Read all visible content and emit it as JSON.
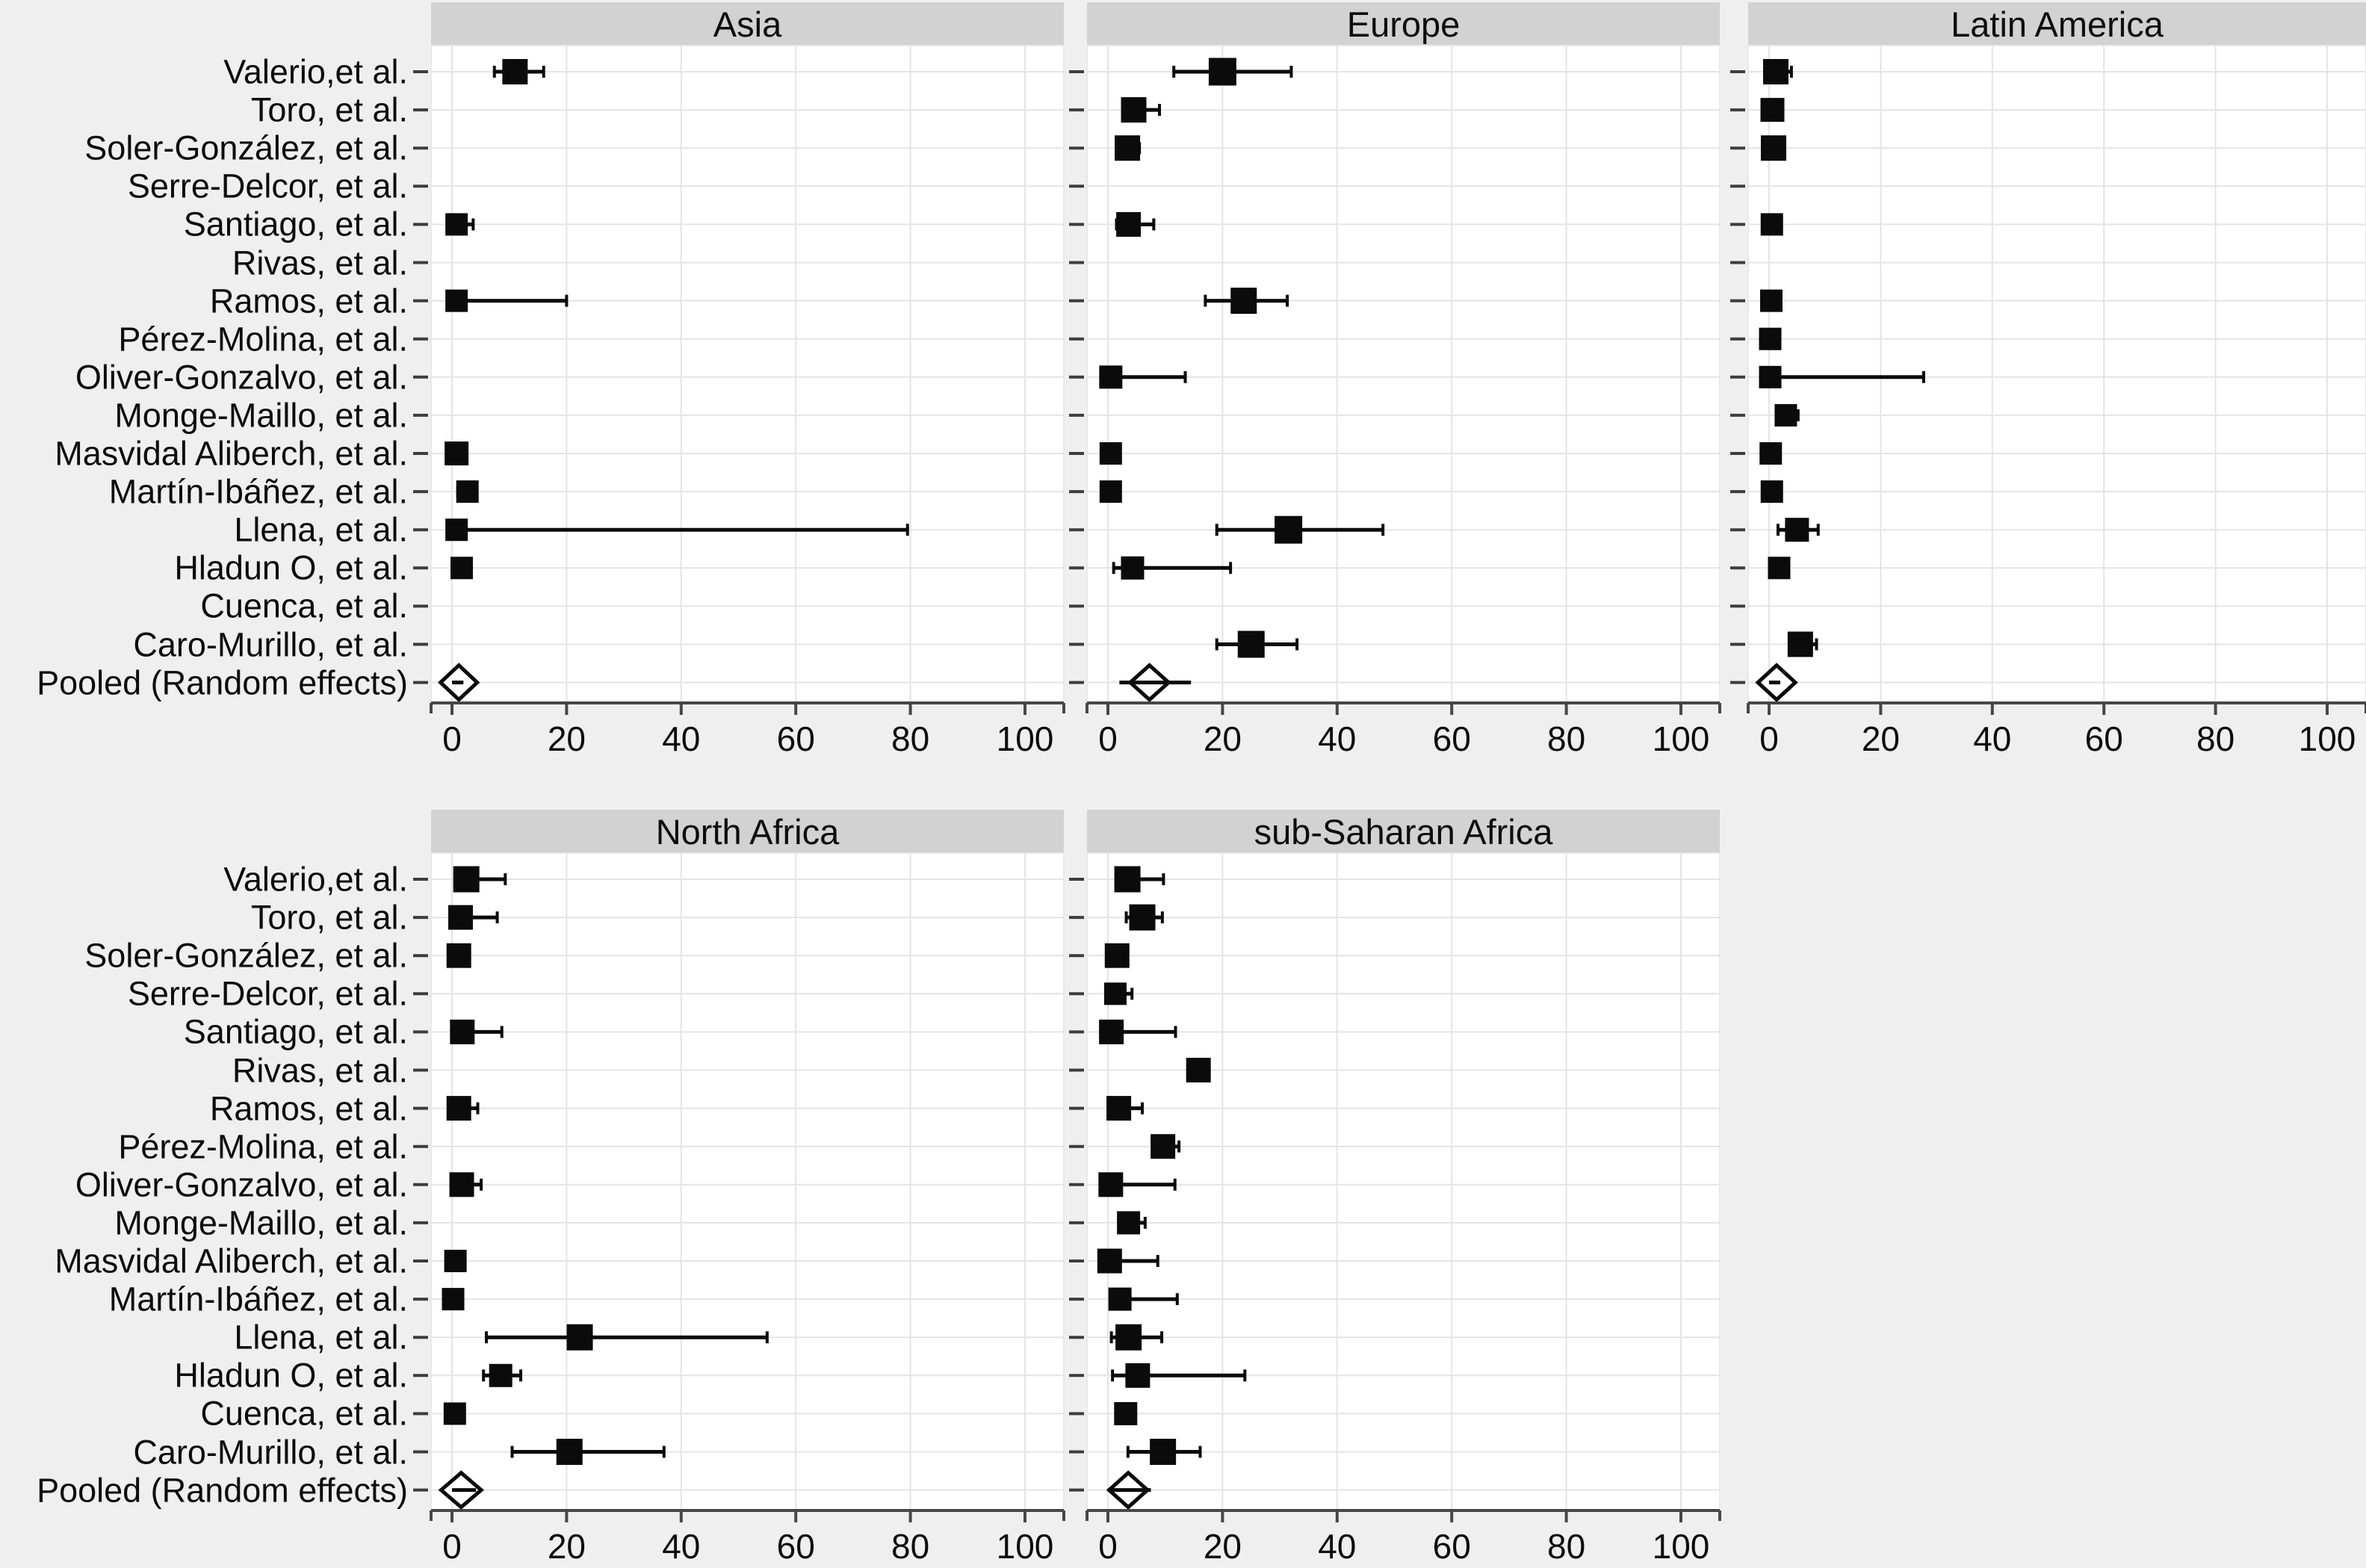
{
  "figure": {
    "background": "#efefef",
    "panel_header_bg": "#d2d2d2",
    "plot_bg": "#ffffff",
    "grid_color": "#e4e4e4",
    "axis_color": "#474747",
    "marker_color": "#0b0b0b",
    "text_color": "#0c0c0c"
  },
  "studies": [
    "Valerio,et al.",
    "Toro, et al.",
    "Soler-González, et al.",
    "Serre-Delcor, et al.",
    "Santiago, et al.",
    "Rivas, et al.",
    "Ramos, et al.",
    "Pérez-Molina, et al.",
    "Oliver-Gonzalvo, et al.",
    "Monge-Maillo, et al.",
    "Masvidal Aliberch, et al.",
    "Martín-Ibáñez, et al.",
    "Llena, et al.",
    "Hladun O, et al.",
    "Cuenca, et al.",
    "Caro-Murillo, et al."
  ],
  "pooled_label": "Pooled (Random effects)",
  "chart_data": [
    {
      "type": "forest",
      "title": "Asia",
      "grid_row": 0,
      "grid_col": 0,
      "x_ticks": [
        0,
        20,
        40,
        60,
        80,
        100
      ],
      "x_range": [
        -4,
        107
      ],
      "estimates": [
        {
          "e": 11,
          "l": 7.4,
          "h": 16,
          "s": 34
        },
        null,
        null,
        null,
        {
          "e": 0.8,
          "l": 0,
          "h": 3.7,
          "s": 30
        },
        null,
        {
          "e": 0.8,
          "l": 0,
          "h": 20,
          "s": 30
        },
        null,
        null,
        null,
        {
          "e": 0.8,
          "l": 0,
          "h": 2,
          "s": 32
        },
        {
          "e": 2.7,
          "l": 1,
          "h": 4,
          "s": 30
        },
        {
          "e": 0.8,
          "l": 0,
          "h": 79.5,
          "s": 30
        },
        {
          "e": 1.7,
          "l": 0,
          "h": 3,
          "s": 30
        },
        null,
        null
      ],
      "pooled": {
        "e": 1,
        "l": -2,
        "h": 4.4,
        "line": [
          0,
          2
        ]
      }
    },
    {
      "type": "forest",
      "title": "Europe",
      "grid_row": 0,
      "grid_col": 1,
      "x_ticks": [
        0,
        20,
        40,
        60,
        80,
        100
      ],
      "x_range": [
        -4,
        107
      ],
      "estimates": [
        {
          "e": 20,
          "l": 11.5,
          "h": 32,
          "s": 37
        },
        {
          "e": 4.5,
          "l": 3,
          "h": 9,
          "s": 34
        },
        {
          "e": 3.4,
          "l": 2,
          "h": 5.5,
          "s": 34
        },
        null,
        {
          "e": 3.6,
          "l": 1.5,
          "h": 8,
          "s": 33
        },
        null,
        {
          "e": 23.7,
          "l": 17,
          "h": 31.3,
          "s": 35
        },
        null,
        {
          "e": 0.5,
          "l": 0,
          "h": 13.5,
          "s": 31
        },
        null,
        {
          "e": 0.5,
          "l": 0,
          "h": 2,
          "s": 30
        },
        {
          "e": 0.5,
          "l": 0,
          "h": 2,
          "s": 30
        },
        {
          "e": 31.5,
          "l": 19,
          "h": 48,
          "s": 37
        },
        {
          "e": 4.3,
          "l": 1,
          "h": 21.4,
          "s": 31
        },
        null,
        {
          "e": 25,
          "l": 19,
          "h": 33,
          "s": 36
        }
      ],
      "pooled": {
        "e": 7.2,
        "l": 3.9,
        "h": 10.6,
        "line": [
          2,
          14.5
        ]
      }
    },
    {
      "type": "forest",
      "title": "Latin America",
      "grid_row": 0,
      "grid_col": 2,
      "x_ticks": [
        0,
        20,
        40,
        60,
        80,
        100
      ],
      "x_range": [
        -4,
        107
      ],
      "estimates": [
        {
          "e": 1.2,
          "l": 0,
          "h": 4,
          "s": 34
        },
        {
          "e": 0.6,
          "l": 0,
          "h": 2,
          "s": 32
        },
        {
          "e": 0.8,
          "l": 0,
          "h": 2.5,
          "s": 34
        },
        null,
        {
          "e": 0.5,
          "l": 0,
          "h": 2,
          "s": 30
        },
        null,
        {
          "e": 0.4,
          "l": 0,
          "h": 1.5,
          "s": 30
        },
        {
          "e": 0.2,
          "l": 0,
          "h": 1.2,
          "s": 30
        },
        {
          "e": 0.2,
          "l": 0,
          "h": 27.7,
          "s": 30
        },
        {
          "e": 3,
          "l": 1.5,
          "h": 5.2,
          "s": 30
        },
        {
          "e": 0.3,
          "l": 0,
          "h": 1.5,
          "s": 30
        },
        {
          "e": 0.5,
          "l": 0,
          "h": 1.5,
          "s": 30
        },
        {
          "e": 5,
          "l": 1.6,
          "h": 8.8,
          "s": 32
        },
        {
          "e": 1.8,
          "l": 0.5,
          "h": 3,
          "s": 30
        },
        null,
        {
          "e": 5.6,
          "l": 4,
          "h": 8.5,
          "s": 34
        }
      ],
      "pooled": {
        "e": 1.3,
        "l": -2,
        "h": 4.7,
        "line": [
          0,
          2
        ]
      }
    },
    {
      "type": "forest",
      "title": "North Africa",
      "grid_row": 1,
      "grid_col": 0,
      "x_ticks": [
        0,
        20,
        40,
        60,
        80,
        100
      ],
      "x_range": [
        -4,
        107
      ],
      "estimates": [
        {
          "e": 2.5,
          "l": 1,
          "h": 9.3,
          "s": 35
        },
        {
          "e": 1.5,
          "l": 0,
          "h": 7.9,
          "s": 33
        },
        {
          "e": 1.2,
          "l": 0,
          "h": 3,
          "s": 33
        },
        null,
        {
          "e": 1.8,
          "l": 0.5,
          "h": 8.7,
          "s": 33
        },
        null,
        {
          "e": 1.2,
          "l": 0,
          "h": 4.5,
          "s": 33
        },
        null,
        {
          "e": 1.7,
          "l": 0,
          "h": 5.1,
          "s": 33
        },
        null,
        {
          "e": 0.6,
          "l": 0,
          "h": 2,
          "s": 30
        },
        {
          "e": 0.2,
          "l": 0,
          "h": 1.5,
          "s": 30
        },
        {
          "e": 22.3,
          "l": 6,
          "h": 55,
          "s": 35
        },
        {
          "e": 8.5,
          "l": 5.5,
          "h": 12,
          "s": 31
        },
        {
          "e": 0.5,
          "l": 0,
          "h": 2,
          "s": 30
        },
        {
          "e": 20.5,
          "l": 10.5,
          "h": 37,
          "s": 35
        }
      ],
      "pooled": {
        "e": 1.6,
        "l": -1.9,
        "h": 5.1,
        "line": [
          0,
          4.2
        ]
      }
    },
    {
      "type": "forest",
      "title": "sub-Saharan Africa",
      "grid_row": 1,
      "grid_col": 1,
      "x_ticks": [
        0,
        20,
        40,
        60,
        80,
        100
      ],
      "x_range": [
        -4,
        107
      ],
      "estimates": [
        {
          "e": 3.4,
          "l": 1.8,
          "h": 9.7,
          "s": 35
        },
        {
          "e": 6,
          "l": 3.2,
          "h": 9.5,
          "s": 35
        },
        {
          "e": 1.6,
          "l": 0.5,
          "h": 3,
          "s": 33
        },
        {
          "e": 1.3,
          "l": 0,
          "h": 4.2,
          "s": 30
        },
        {
          "e": 0.6,
          "l": 0,
          "h": 11.8,
          "s": 33
        },
        {
          "e": 15.8,
          "l": 15,
          "h": 17.5,
          "s": 33
        },
        {
          "e": 1.9,
          "l": 1,
          "h": 6,
          "s": 33
        },
        {
          "e": 9.6,
          "l": 8,
          "h": 12.4,
          "s": 33
        },
        {
          "e": 0.5,
          "l": 0,
          "h": 11.7,
          "s": 33
        },
        {
          "e": 3.6,
          "l": 2,
          "h": 6.5,
          "s": 31
        },
        {
          "e": 0.3,
          "l": 0,
          "h": 8.7,
          "s": 33
        },
        {
          "e": 2.1,
          "l": 0.5,
          "h": 12.1,
          "s": 31
        },
        {
          "e": 3.6,
          "l": 0.6,
          "h": 9.4,
          "s": 35
        },
        {
          "e": 5.2,
          "l": 0.8,
          "h": 23.9,
          "s": 33
        },
        {
          "e": 3.1,
          "l": 2,
          "h": 4.5,
          "s": 31
        },
        {
          "e": 9.6,
          "l": 3.5,
          "h": 16.1,
          "s": 35
        }
      ],
      "pooled": {
        "e": 3.5,
        "l": 0.2,
        "h": 6.9,
        "line": [
          0,
          7.5
        ]
      }
    }
  ]
}
